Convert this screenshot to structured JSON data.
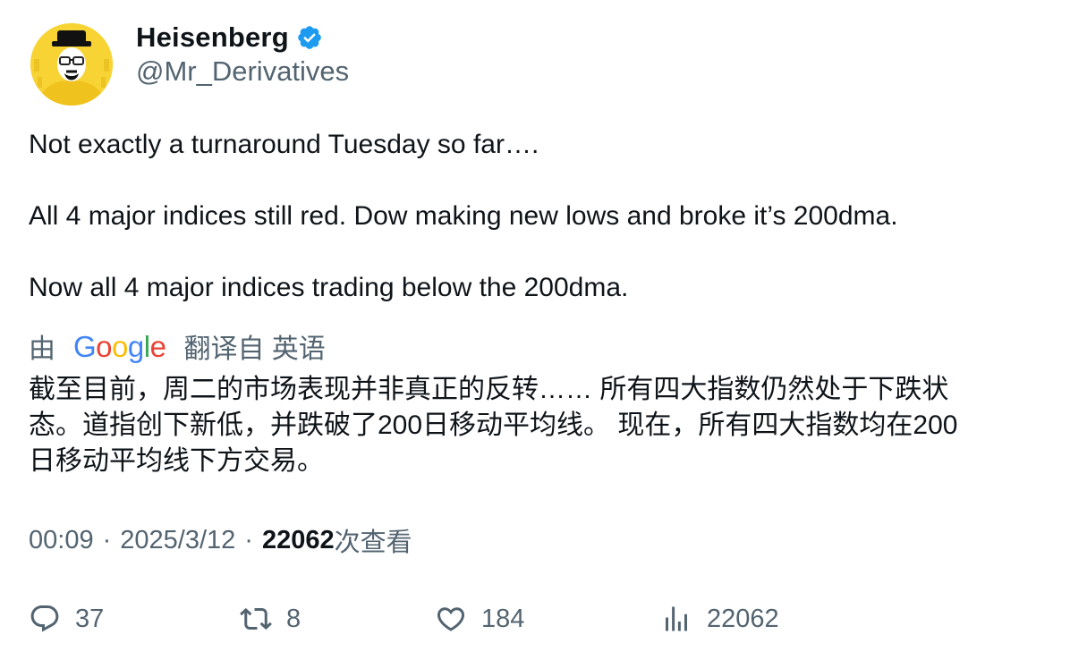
{
  "author": {
    "display_name": "Heisenberg",
    "handle": "@Mr_Derivatives",
    "verified": true,
    "avatar_icon": "heisenberg-avatar-icon",
    "verified_color": "#1d9bf0"
  },
  "tweet": {
    "lines": [
      "Not exactly a turnaround Tuesday so far….",
      "All 4 major indices still red. Dow making new lows and broke it’s 200dma.",
      "Now all 4 major indices trading below the 200dma."
    ]
  },
  "translation": {
    "prefix": "由",
    "provider": "Google",
    "suffix": "翻译自 英语",
    "lines": [
      "截至目前，周二的市场表现并非真正的反转…… 所有四大指数仍然处于下跌状",
      "态。道指创下新低，并跌破了200日移动平均线。 现在，所有四大指数均在200",
      "日移动平均线下方交易。"
    ]
  },
  "meta": {
    "time": "00:09",
    "separator": "·",
    "date": "2025/3/12",
    "views_count": "22062",
    "views_label": "次查看"
  },
  "actions": {
    "replies": "37",
    "retweets": "8",
    "likes": "184",
    "views": "22062",
    "icons": [
      "reply-icon",
      "retweet-icon",
      "like-icon",
      "views-chart-icon"
    ]
  },
  "colors": {
    "text": "#0f1419",
    "secondary": "#536471",
    "google_blue": "#4285f4",
    "google_red": "#ea4335",
    "google_yellow": "#fbbc05",
    "google_green": "#34a853"
  }
}
